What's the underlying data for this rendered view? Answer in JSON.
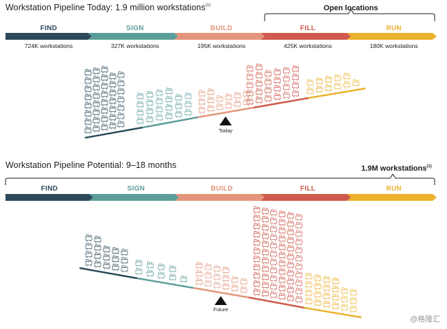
{
  "top": {
    "title": "Workstation Pipeline Today: 1.9 million workstations",
    "title_footnote": "(1)",
    "callout": "Open locations",
    "marker": "Today",
    "stages": [
      {
        "label": "FIND",
        "count": "724K workstations",
        "color": "#2c4a5a"
      },
      {
        "label": "SIGN",
        "count": "327K workstations",
        "color": "#5b9e99"
      },
      {
        "label": "BUILD",
        "count": "195K workstations",
        "color": "#e2957a"
      },
      {
        "label": "FILL",
        "count": "425K workstations",
        "color": "#cf5a4d"
      },
      {
        "label": "RUN",
        "count": "180K workstations",
        "color": "#ecb12d"
      }
    ]
  },
  "bottom": {
    "title": "Workstation Pipeline Potential: 9–18 months",
    "callout": "1.9M workstations",
    "callout_footnote": "(1)",
    "marker": "Future",
    "stages": [
      {
        "label": "FIND",
        "color": "#2c4a5a"
      },
      {
        "label": "SIGN",
        "color": "#5b9e99"
      },
      {
        "label": "BUILD",
        "color": "#e2957a"
      },
      {
        "label": "FILL",
        "color": "#cf5a4d"
      },
      {
        "label": "RUN",
        "color": "#ecb12d"
      }
    ]
  },
  "icons": {
    "top": {
      "find": 38,
      "sign": 22,
      "build": 14,
      "fill": 26,
      "run": 11
    },
    "bottom": {
      "find": 17,
      "sign": 9,
      "build": 16,
      "fill": 66,
      "run": 22
    }
  },
  "watermark": "@格隆汇"
}
